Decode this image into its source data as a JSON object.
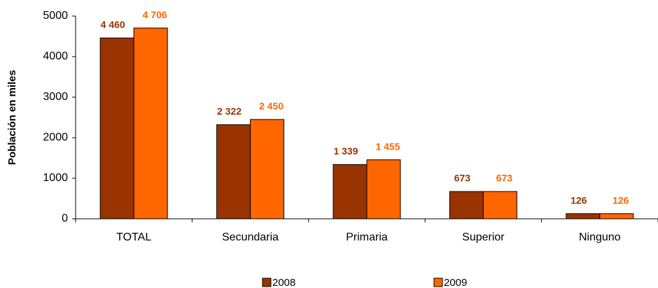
{
  "chart_data": {
    "type": "bar",
    "y_label": "Población en miles",
    "categories": [
      "TOTAL",
      "Secundaria",
      "Primaria",
      "Superior",
      "Ninguno"
    ],
    "series": [
      {
        "name": "2008",
        "color": "#993300",
        "values": [
          4460,
          2322,
          1339,
          673,
          126
        ],
        "value_labels": [
          "4 460",
          "2 322",
          "1 339",
          "673",
          "126"
        ]
      },
      {
        "name": "2009",
        "color": "#FF6600",
        "values": [
          4706,
          2450,
          1455,
          673,
          126
        ],
        "value_labels": [
          "4 706",
          "2 450",
          "1 455",
          "673",
          "126"
        ]
      }
    ],
    "ylim": [
      0,
      5000
    ],
    "yticks": [
      0,
      1000,
      2000,
      3000,
      4000,
      5000
    ]
  }
}
